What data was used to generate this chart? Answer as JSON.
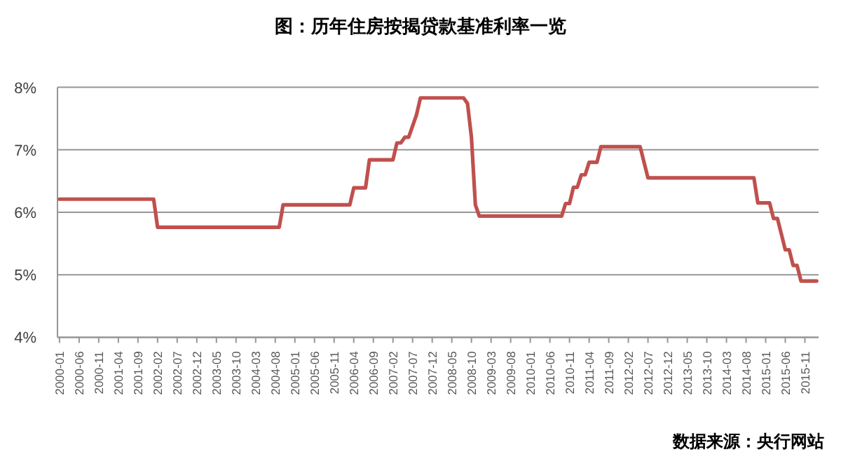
{
  "chart_data": {
    "type": "line",
    "title": "图：历年住房按揭贷款基准利率一览",
    "annotations": [
      "数据来源：央行网站"
    ],
    "x": [
      "2000-01",
      "2002-01",
      "2002-02",
      "2004-09",
      "2004-10",
      "2006-03",
      "2006-04",
      "2006-07",
      "2006-08",
      "2007-02",
      "2007-03",
      "2007-04",
      "2007-05",
      "2007-06",
      "2007-07",
      "2007-08",
      "2007-09",
      "2008-08",
      "2008-09",
      "2008-10",
      "2008-11",
      "2008-12",
      "2010-09",
      "2010-10",
      "2010-11",
      "2010-12",
      "2011-01",
      "2011-02",
      "2011-03",
      "2011-04",
      "2011-06",
      "2011-07",
      "2012-05",
      "2012-06",
      "2012-07",
      "2014-10",
      "2014-11",
      "2015-02",
      "2015-03",
      "2015-04",
      "2015-05",
      "2015-06",
      "2015-07",
      "2015-08",
      "2015-09",
      "2015-10",
      "2016-02"
    ],
    "series": [
      {
        "color": "#c0504d",
        "values": [
          6.21,
          6.21,
          5.76,
          5.76,
          6.12,
          6.12,
          6.39,
          6.39,
          6.84,
          6.84,
          7.11,
          7.11,
          7.2,
          7.2,
          7.38,
          7.56,
          7.83,
          7.83,
          7.74,
          7.2,
          6.12,
          5.94,
          5.94,
          6.14,
          6.14,
          6.4,
          6.4,
          6.6,
          6.6,
          6.8,
          6.8,
          7.05,
          7.05,
          6.8,
          6.55,
          6.55,
          6.15,
          6.15,
          5.9,
          5.9,
          5.65,
          5.4,
          5.4,
          5.15,
          5.15,
          4.9,
          4.9
        ]
      }
    ],
    "xlim": [
      "1999-12-16",
      "2016-02-15"
    ],
    "xticks": [
      "2000-01",
      "2000-06",
      "2000-11",
      "2001-04",
      "2001-09",
      "2002-02",
      "2002-07",
      "2002-12",
      "2003-05",
      "2003-10",
      "2004-03",
      "2004-08",
      "2005-01",
      "2005-06",
      "2005-11",
      "2006-04",
      "2006-09",
      "2007-02",
      "2007-07",
      "2007-12",
      "2008-05",
      "2008-10",
      "2009-03",
      "2009-08",
      "2010-01",
      "2010-06",
      "2010-11",
      "2011-04",
      "2011-09",
      "2012-02",
      "2012-07",
      "2012-12",
      "2013-05",
      "2013-10",
      "2014-03",
      "2014-08",
      "2015-01",
      "2015-06",
      "2015-11"
    ],
    "ylim": [
      4,
      8
    ],
    "yticks": [
      {
        "value": 4,
        "label": "4%"
      },
      {
        "value": 5,
        "label": "5%"
      },
      {
        "value": 6,
        "label": "6%"
      },
      {
        "value": 7,
        "label": "7%"
      },
      {
        "value": 8,
        "label": "8%"
      }
    ],
    "grid": "y"
  }
}
